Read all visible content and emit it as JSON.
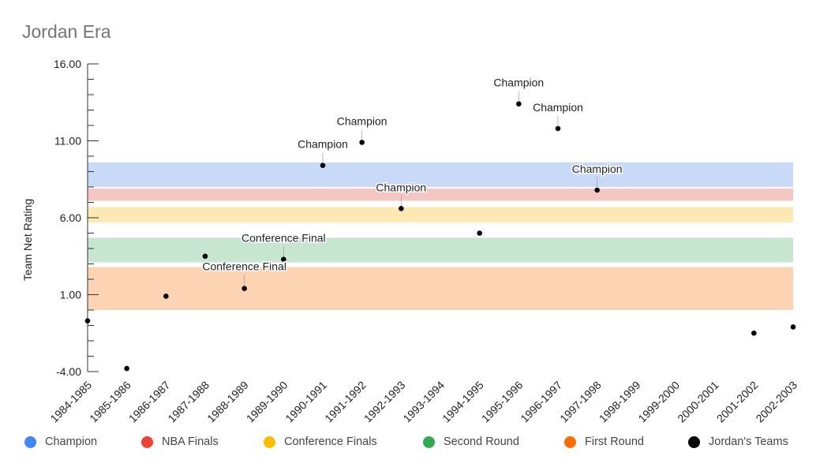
{
  "chart_data": {
    "type": "scatter",
    "title": "Jordan Era",
    "xlabel": "",
    "ylabel": "Team Net Rating",
    "ylim": [
      -4,
      16
    ],
    "ytick_labels": [
      "16.00",
      "11.00",
      "6.00",
      "1.00",
      "-4.00"
    ],
    "ytick_values": [
      16,
      11,
      6,
      1,
      -4
    ],
    "categories": [
      "1984-1985",
      "1985-1986",
      "1986-1987",
      "1987-1988",
      "1988-1989",
      "1989-1990",
      "1990-1991",
      "1991-1992",
      "1992-1993",
      "1993-1994",
      "1994-1995",
      "1995-1996",
      "1996-1997",
      "1997-1998",
      "1998-1999",
      "1999-2000",
      "2000-2001",
      "2001-2002",
      "2002-2003"
    ],
    "bands": [
      {
        "name": "Champion",
        "from": 8.0,
        "to": 9.6,
        "color": "#c9daf8"
      },
      {
        "name": "NBA Finals",
        "from": 7.1,
        "to": 7.9,
        "color": "#f4c7c3"
      },
      {
        "name": "Conference Finals",
        "from": 5.7,
        "to": 6.7,
        "color": "#fce8b2"
      },
      {
        "name": "Second Round",
        "from": 3.1,
        "to": 4.7,
        "color": "#c6e6cf"
      },
      {
        "name": "First Round",
        "from": 0.0,
        "to": 2.8,
        "color": "#fcd3b3"
      }
    ],
    "series": [
      {
        "name": "Jordan's Teams",
        "color": "#000000",
        "points": [
          {
            "x": "1984-1985",
            "y": -0.7,
            "label": ""
          },
          {
            "x": "1985-1986",
            "y": -3.8,
            "label": ""
          },
          {
            "x": "1986-1987",
            "y": 0.9,
            "label": ""
          },
          {
            "x": "1987-1988",
            "y": 3.5,
            "label": ""
          },
          {
            "x": "1988-1989",
            "y": 1.4,
            "label": "Conference Final"
          },
          {
            "x": "1989-1990",
            "y": 3.3,
            "label": "Conference Final"
          },
          {
            "x": "1990-1991",
            "y": 9.4,
            "label": "Champion"
          },
          {
            "x": "1991-1992",
            "y": 10.9,
            "label": "Champion"
          },
          {
            "x": "1992-1993",
            "y": 6.6,
            "label": "Champion"
          },
          {
            "x": "1994-1995",
            "y": 5.0,
            "label": ""
          },
          {
            "x": "1995-1996",
            "y": 13.4,
            "label": "Champion"
          },
          {
            "x": "1996-1997",
            "y": 11.8,
            "label": "Champion"
          },
          {
            "x": "1997-1998",
            "y": 7.8,
            "label": "Champion"
          },
          {
            "x": "2001-2002",
            "y": -1.5,
            "label": ""
          },
          {
            "x": "2002-2003",
            "y": -1.1,
            "label": ""
          }
        ]
      }
    ],
    "legend": [
      {
        "label": "Champion",
        "color": "#4285f4"
      },
      {
        "label": "NBA Finals",
        "color": "#ea4335"
      },
      {
        "label": "Conference Finals",
        "color": "#fbbc04"
      },
      {
        "label": "Second Round",
        "color": "#34a853"
      },
      {
        "label": "First Round",
        "color": "#ff6d01"
      },
      {
        "label": "Jordan's Teams",
        "color": "#000000"
      }
    ],
    "legend_position": "bottom",
    "grid": false
  }
}
